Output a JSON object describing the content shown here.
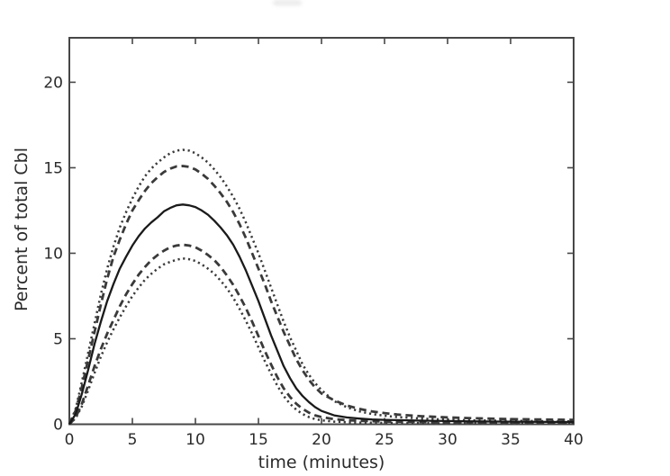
{
  "figure": {
    "title": "",
    "xlabel": "time (minutes)",
    "ylabel": "Percent of total Cbl",
    "x_tick_labels": [
      "0",
      "5",
      "10",
      "15",
      "20",
      "25",
      "30",
      "35",
      "40"
    ],
    "y_tick_labels": [
      "0",
      "5",
      "10",
      "15",
      "20"
    ],
    "frame_color": "#474747",
    "text_color": "#2a2a2a"
  },
  "chart_data": {
    "type": "line",
    "title": "",
    "xlabel": "time (minutes)",
    "ylabel": "Percent of total Cbl",
    "xlim": [
      0,
      40
    ],
    "ylim": [
      0,
      22.6
    ],
    "x_ticks": [
      0,
      5,
      10,
      15,
      20,
      25,
      30,
      35,
      40
    ],
    "y_ticks": [
      0,
      5,
      10,
      15,
      20
    ],
    "grid": false,
    "legend_position": "none",
    "x": [
      0,
      0.5,
      1,
      1.5,
      2,
      2.5,
      3,
      3.5,
      4,
      4.5,
      5,
      5.5,
      6,
      6.5,
      7,
      7.5,
      8,
      8.5,
      9,
      9.5,
      10,
      10.5,
      11,
      11.5,
      12,
      12.5,
      13,
      13.5,
      14,
      14.5,
      15,
      15.5,
      16,
      16.5,
      17,
      17.5,
      18,
      18.5,
      19,
      19.5,
      20,
      21,
      22,
      23,
      24,
      25,
      26,
      28,
      30,
      32,
      35,
      40
    ],
    "series": [
      {
        "name": "upper-dotted-envelope",
        "style": "dotted",
        "color": "#3a3a3a",
        "peak": {
          "x": 9,
          "y": 16.05
        },
        "values": [
          0,
          0.9,
          2.5,
          4.2,
          5.9,
          7.6,
          9.1,
          10.4,
          11.5,
          12.4,
          13.2,
          13.9,
          14.5,
          14.95,
          15.3,
          15.6,
          15.85,
          16,
          16.05,
          16,
          15.85,
          15.6,
          15.3,
          14.9,
          14.45,
          13.9,
          13.3,
          12.6,
          11.8,
          10.9,
          10,
          9,
          8,
          7,
          6,
          5.1,
          4.3,
          3.5,
          2.9,
          2.4,
          2,
          1.35,
          1,
          0.75,
          0.6,
          0.5,
          0.42,
          0.33,
          0.27,
          0.23,
          0.2,
          0.17
        ]
      },
      {
        "name": "upper-dashed-envelope",
        "style": "dashed",
        "color": "#3a3a3a",
        "peak": {
          "x": 9,
          "y": 15.1
        },
        "values": [
          0,
          0.8,
          2.2,
          3.8,
          5.4,
          7,
          8.5,
          9.8,
          10.8,
          11.7,
          12.5,
          13.1,
          13.65,
          14.1,
          14.45,
          14.75,
          14.95,
          15.08,
          15.1,
          15.05,
          14.9,
          14.65,
          14.35,
          13.95,
          13.5,
          13,
          12.4,
          11.7,
          10.9,
          10,
          9.1,
          8.2,
          7.2,
          6.3,
          5.4,
          4.6,
          3.8,
          3.15,
          2.6,
          2.15,
          1.8,
          1.4,
          1.1,
          0.9,
          0.75,
          0.65,
          0.57,
          0.47,
          0.4,
          0.35,
          0.3,
          0.26
        ]
      },
      {
        "name": "lower-dashed-envelope",
        "style": "dashed",
        "color": "#3a3a3a",
        "peak": {
          "x": 9,
          "y": 10.5
        },
        "values": [
          0,
          0.4,
          1.2,
          2.3,
          3.4,
          4.4,
          5.3,
          6.1,
          6.9,
          7.6,
          8.2,
          8.75,
          9.2,
          9.6,
          9.9,
          10.15,
          10.35,
          10.45,
          10.5,
          10.45,
          10.35,
          10.15,
          9.9,
          9.6,
          9.2,
          8.7,
          8.15,
          7.5,
          6.8,
          6,
          5.15,
          4.3,
          3.5,
          2.75,
          2.1,
          1.6,
          1.2,
          0.9,
          0.68,
          0.52,
          0.42,
          0.3,
          0.24,
          0.2,
          0.18,
          0.16,
          0.15,
          0.13,
          0.12,
          0.11,
          0.1,
          0.08
        ]
      },
      {
        "name": "lower-dotted-envelope",
        "style": "dotted",
        "color": "#3a3a3a",
        "peak": {
          "x": 9,
          "y": 9.7
        },
        "values": [
          0,
          0.35,
          1.05,
          2,
          3,
          3.95,
          4.8,
          5.55,
          6.25,
          6.9,
          7.5,
          8,
          8.45,
          8.8,
          9.1,
          9.35,
          9.5,
          9.62,
          9.7,
          9.65,
          9.55,
          9.35,
          9.1,
          8.8,
          8.4,
          7.95,
          7.4,
          6.75,
          6.05,
          5.3,
          4.5,
          3.7,
          2.95,
          2.25,
          1.65,
          1.2,
          0.85,
          0.6,
          0.42,
          0.3,
          0.23,
          0.15,
          0.12,
          0.1,
          0.09,
          0.08,
          0.08,
          0.07,
          0.06,
          0.06,
          0.05,
          0.05
        ]
      },
      {
        "name": "solid-mean-curve",
        "style": "solid",
        "color": "#1a1a1a",
        "peak": {
          "x": 9,
          "y": 12.85
        },
        "values": [
          0,
          0.6,
          1.8,
          3.2,
          4.7,
          6,
          7.2,
          8.2,
          9.1,
          9.8,
          10.45,
          11,
          11.45,
          11.8,
          12.1,
          12.45,
          12.65,
          12.8,
          12.85,
          12.8,
          12.7,
          12.5,
          12.25,
          11.9,
          11.5,
          11.05,
          10.5,
          9.8,
          9,
          8.1,
          7.2,
          6.2,
          5.2,
          4.3,
          3.4,
          2.7,
          2.1,
          1.65,
          1.3,
          1,
          0.78,
          0.52,
          0.4,
          0.33,
          0.28,
          0.26,
          0.24,
          0.21,
          0.19,
          0.17,
          0.15,
          0.13
        ]
      }
    ]
  }
}
